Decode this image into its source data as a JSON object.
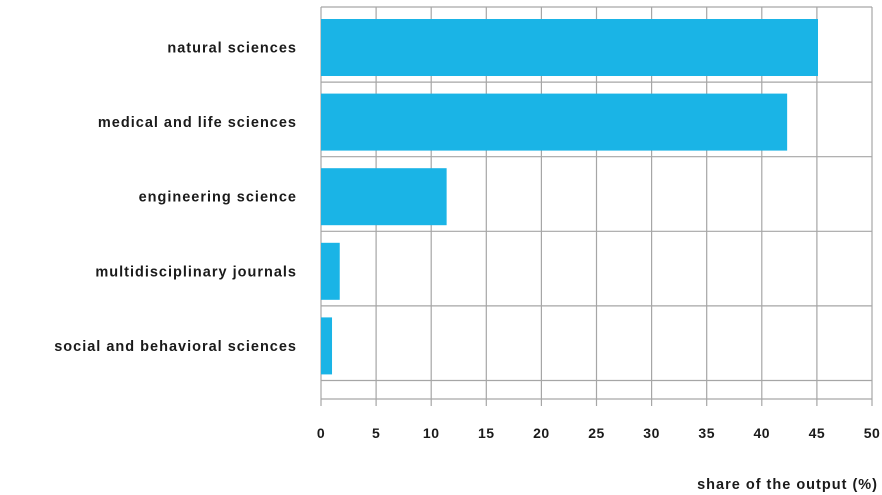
{
  "chart_data": {
    "type": "bar",
    "orientation": "horizontal",
    "categories": [
      "natural sciences",
      "medical and life sciences",
      "engineering science",
      "multidisciplinary journals",
      "social and behavioral sciences"
    ],
    "values": [
      45.1,
      42.3,
      11.4,
      1.7,
      1.0
    ],
    "xlabel": "share of the output (%)",
    "ylabel": "",
    "xlim": [
      0,
      50
    ],
    "xticks": [
      "0",
      "5",
      "10",
      "15",
      "20",
      "25",
      "30",
      "35",
      "40",
      "45",
      "50"
    ],
    "grid": true,
    "colors": {
      "bar": "#1ab4e6",
      "grid": "#a6a6a6"
    }
  }
}
